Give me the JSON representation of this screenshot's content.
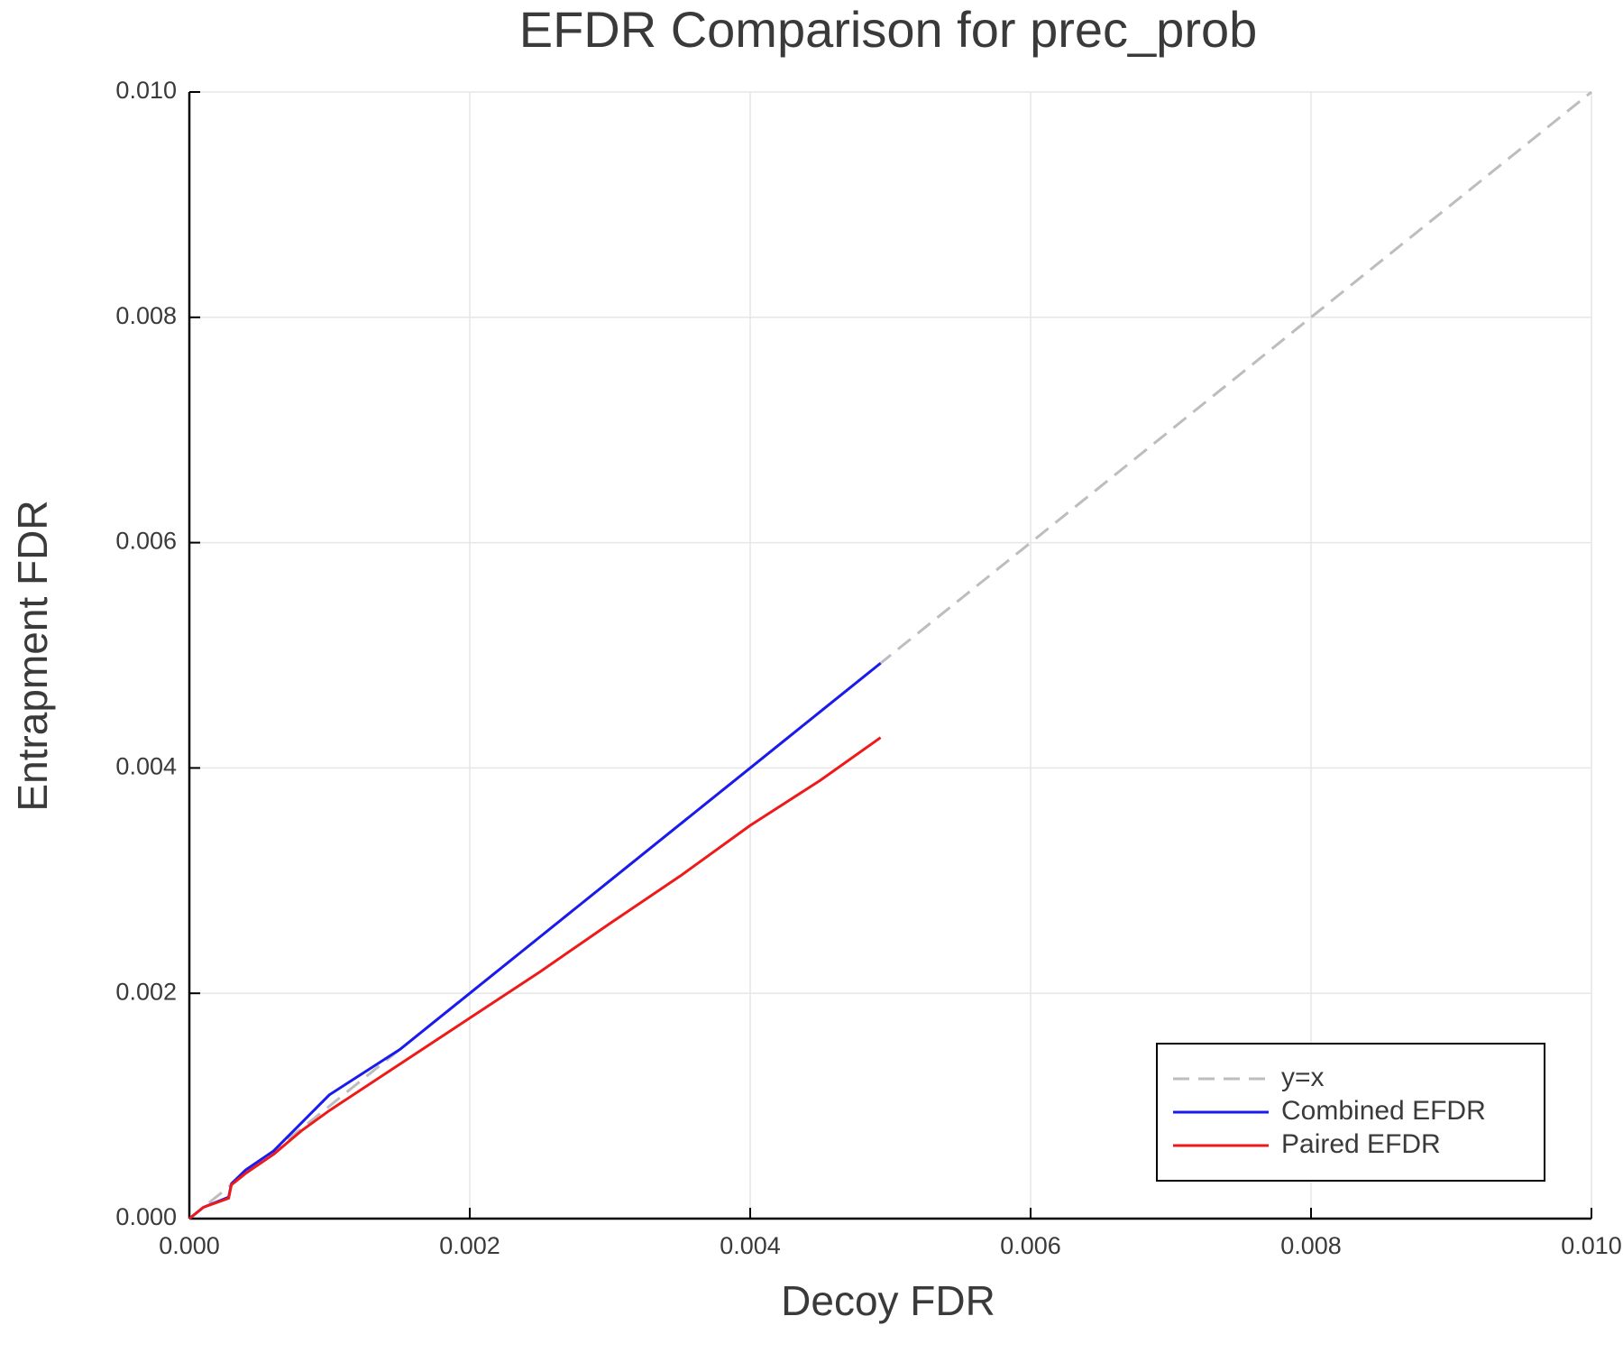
{
  "chart_data": {
    "type": "line",
    "title": "EFDR Comparison for prec_prob",
    "x_label": "Decoy FDR",
    "y_label": "Entrapment FDR",
    "xlim": [
      0,
      0.01
    ],
    "ylim": [
      0,
      0.01
    ],
    "xticks": [
      {
        "value": 0,
        "label": "0.000"
      },
      {
        "value": 0.002,
        "label": "0.002"
      },
      {
        "value": 0.004,
        "label": "0.004"
      },
      {
        "value": 0.006,
        "label": "0.006"
      },
      {
        "value": 0.008,
        "label": "0.008"
      },
      {
        "value": 0.01,
        "label": "0.010"
      }
    ],
    "yticks": [
      {
        "value": 0,
        "label": "0.000"
      },
      {
        "value": 0.002,
        "label": "0.002"
      },
      {
        "value": 0.004,
        "label": "0.004"
      },
      {
        "value": 0.006,
        "label": "0.006"
      },
      {
        "value": 0.008,
        "label": "0.008"
      },
      {
        "value": 0.01,
        "label": "0.010"
      }
    ],
    "grid": true,
    "legend": "lower right",
    "series": [
      {
        "name": "y=x",
        "color": "#bdbdbd",
        "style": "dashed",
        "x": [
          0,
          0.01
        ],
        "values": [
          0,
          0.01
        ]
      },
      {
        "name": "Combined EFDR",
        "color": "#1a1aee",
        "style": "solid",
        "x": [
          0,
          0.0001,
          0.00028,
          0.0003,
          0.0004,
          0.0006,
          0.0008,
          0.001,
          0.0015,
          0.002,
          0.0025,
          0.003,
          0.0035,
          0.004,
          0.0045,
          0.00493
        ],
        "values": [
          0,
          0.0001,
          0.00019,
          0.00031,
          0.00043,
          0.0006,
          0.00085,
          0.0011,
          0.0015,
          0.002,
          0.0025,
          0.003,
          0.0035,
          0.004,
          0.0045,
          0.00493
        ]
      },
      {
        "name": "Paired EFDR",
        "color": "#ee1a1a",
        "style": "solid",
        "x": [
          0,
          0.0001,
          0.00028,
          0.0003,
          0.0004,
          0.0006,
          0.0008,
          0.001,
          0.0015,
          0.002,
          0.0025,
          0.003,
          0.0035,
          0.004,
          0.0045,
          0.00493
        ],
        "values": [
          0,
          0.0001,
          0.00018,
          0.0003,
          0.0004,
          0.00057,
          0.00078,
          0.00096,
          0.00137,
          0.00178,
          0.00219,
          0.00262,
          0.00304,
          0.00349,
          0.00389,
          0.00427
        ]
      }
    ]
  }
}
